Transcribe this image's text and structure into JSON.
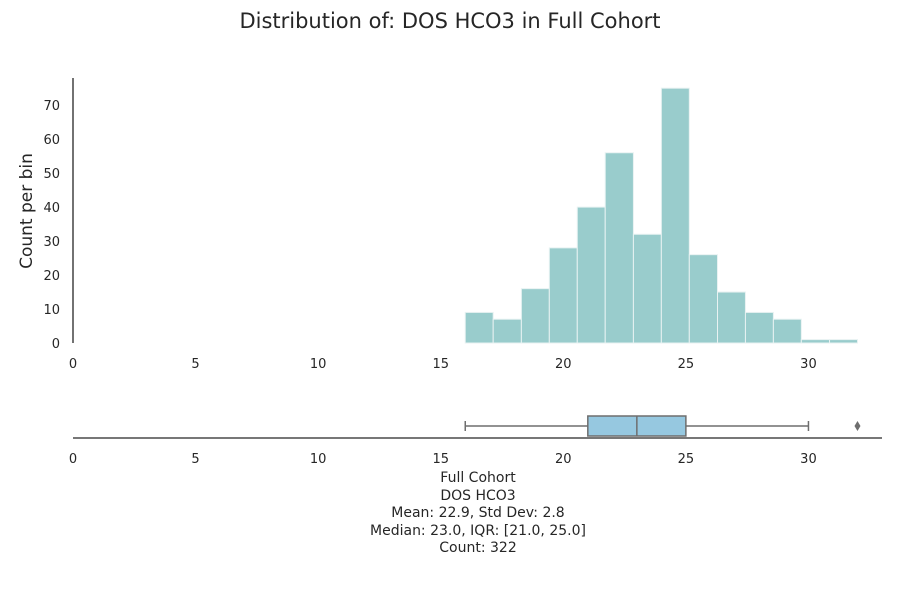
{
  "chart_data": [
    {
      "type": "bar",
      "subtype": "histogram",
      "title": "Distribution of: DOS HCO3 in Full Cohort",
      "ylabel": "Count per bin",
      "xlabel": "",
      "xlim": [
        0,
        33
      ],
      "ylim": [
        0,
        78
      ],
      "x_ticks": [
        0,
        5,
        10,
        15,
        20,
        25,
        30
      ],
      "y_ticks": [
        0,
        10,
        20,
        30,
        40,
        50,
        60,
        70
      ],
      "bin_edges": [
        16,
        17.14,
        18.29,
        19.43,
        20.57,
        21.71,
        22.86,
        24,
        25.14,
        26.29,
        27.43,
        28.57,
        29.71,
        30.86,
        32
      ],
      "values": [
        9,
        7,
        16,
        28,
        40,
        56,
        32,
        75,
        26,
        15,
        9,
        7,
        1,
        1
      ],
      "color": "#99cccc",
      "edge_color": "#e8f2f2",
      "grid": false
    },
    {
      "type": "box",
      "orientation": "horizontal",
      "xlim": [
        0,
        33
      ],
      "x_ticks": [
        0,
        5,
        10,
        15,
        20,
        25,
        30
      ],
      "whisker_low": 16,
      "q1": 21,
      "median": 23,
      "q3": 25,
      "whisker_high": 30,
      "outliers": [
        32
      ],
      "box_color": "#96c8e0",
      "line_color": "#6e6e6e",
      "grid": false
    }
  ],
  "stats": {
    "line1": "Full Cohort",
    "line2": "DOS HCO3",
    "line3": "Mean: 22.9, Std Dev: 2.8",
    "line4": "Median: 23.0, IQR: [21.0, 25.0]",
    "line5": "Count: 322"
  }
}
